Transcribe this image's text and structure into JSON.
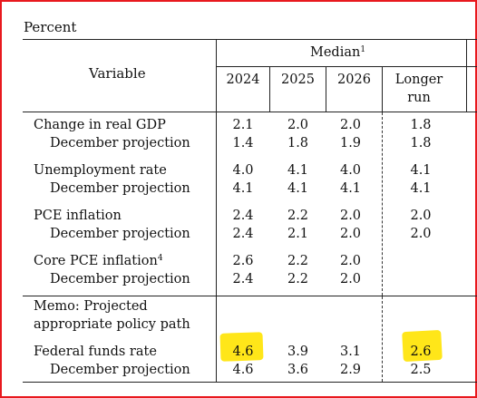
{
  "unit_label": "Percent",
  "header": {
    "variable": "Variable",
    "median": "Median",
    "median_note": "1",
    "years": [
      "2024",
      "2025",
      "2026"
    ],
    "longer_run_line1": "Longer",
    "longer_run_line2": "run"
  },
  "rows": [
    {
      "label": "Change in real GDP",
      "v2024": "2.1",
      "v2025": "2.0",
      "v2026": "2.0",
      "lr": "1.8"
    },
    {
      "label": "December projection",
      "v2024": "1.4",
      "v2025": "1.8",
      "v2026": "1.9",
      "lr": "1.8"
    },
    {
      "label": "Unemployment rate",
      "v2024": "4.0",
      "v2025": "4.1",
      "v2026": "4.0",
      "lr": "4.1"
    },
    {
      "label": "December projection",
      "v2024": "4.1",
      "v2025": "4.1",
      "v2026": "4.1",
      "lr": "4.1"
    },
    {
      "label": "PCE inflation",
      "v2024": "2.4",
      "v2025": "2.2",
      "v2026": "2.0",
      "lr": "2.0"
    },
    {
      "label": "December projection",
      "v2024": "2.4",
      "v2025": "2.1",
      "v2026": "2.0",
      "lr": "2.0"
    },
    {
      "label": "Core PCE inflation",
      "note": "4",
      "v2024": "2.6",
      "v2025": "2.2",
      "v2026": "2.0",
      "lr": ""
    },
    {
      "label": "December projection",
      "v2024": "2.4",
      "v2025": "2.2",
      "v2026": "2.0",
      "lr": ""
    }
  ],
  "memo": {
    "line1": "Memo: Projected",
    "line2": "appropriate policy path"
  },
  "memo_rows": [
    {
      "label": "Federal funds rate",
      "v2024": "4.6",
      "v2025": "3.9",
      "v2026": "3.1",
      "lr": "2.6"
    },
    {
      "label": "December projection",
      "v2024": "4.6",
      "v2025": "3.6",
      "v2026": "2.9",
      "lr": "2.5"
    }
  ],
  "highlight_color": "#ffe619",
  "border_color": "#e8191e"
}
